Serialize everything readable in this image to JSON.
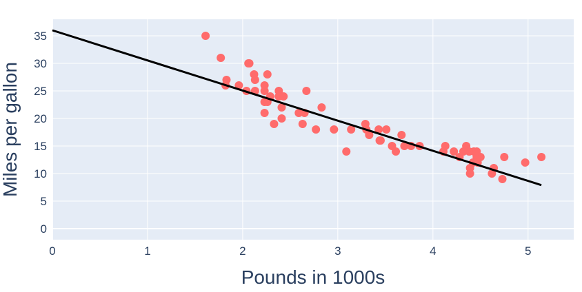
{
  "chart_data": {
    "type": "scatter",
    "xlabel": "Pounds in 1000s",
    "ylabel": "Miles per gallon",
    "xlim": [
      0,
      5.48
    ],
    "ylim": [
      -2,
      38
    ],
    "xticks": [
      0,
      1,
      2,
      3,
      4,
      5
    ],
    "yticks": [
      0,
      5,
      10,
      15,
      20,
      25,
      30,
      35
    ],
    "grid": true,
    "colors": {
      "points": "#ff6b6b",
      "line": "#000000",
      "plot_bg": "#e5ecf6",
      "grid": "#ffffff"
    },
    "trendline": {
      "x": [
        0,
        5.14
      ],
      "y": [
        36,
        7.9
      ]
    },
    "points": [
      [
        1.61,
        35
      ],
      [
        1.77,
        31
      ],
      [
        1.83,
        27
      ],
      [
        1.82,
        26
      ],
      [
        1.96,
        26
      ],
      [
        2.06,
        30
      ],
      [
        2.07,
        30
      ],
      [
        2.12,
        28
      ],
      [
        2.13,
        27
      ],
      [
        2.26,
        28
      ],
      [
        2.04,
        25
      ],
      [
        2.13,
        25
      ],
      [
        2.23,
        26
      ],
      [
        2.23,
        25
      ],
      [
        2.23,
        23
      ],
      [
        2.26,
        23
      ],
      [
        2.23,
        21
      ],
      [
        2.29,
        24
      ],
      [
        2.38,
        25
      ],
      [
        2.38,
        24
      ],
      [
        2.43,
        24
      ],
      [
        2.41,
        22
      ],
      [
        2.33,
        19
      ],
      [
        2.41,
        20
      ],
      [
        2.67,
        25
      ],
      [
        2.59,
        21
      ],
      [
        2.65,
        21
      ],
      [
        2.63,
        19
      ],
      [
        2.77,
        18
      ],
      [
        2.83,
        22
      ],
      [
        2.96,
        18
      ],
      [
        3.09,
        14
      ],
      [
        3.14,
        18
      ],
      [
        3.29,
        19
      ],
      [
        3.3,
        18
      ],
      [
        3.33,
        17
      ],
      [
        3.43,
        18
      ],
      [
        3.45,
        16
      ],
      [
        3.51,
        18
      ],
      [
        3.44,
        16
      ],
      [
        3.57,
        15
      ],
      [
        3.61,
        14
      ],
      [
        3.67,
        17
      ],
      [
        3.7,
        15
      ],
      [
        3.77,
        15
      ],
      [
        3.86,
        15
      ],
      [
        4.11,
        14
      ],
      [
        4.13,
        15
      ],
      [
        4.22,
        14
      ],
      [
        4.28,
        13
      ],
      [
        4.35,
        15
      ],
      [
        4.32,
        14
      ],
      [
        4.38,
        14
      ],
      [
        4.39,
        11
      ],
      [
        4.39,
        10
      ],
      [
        4.43,
        14
      ],
      [
        4.46,
        13
      ],
      [
        4.5,
        13
      ],
      [
        4.42,
        12
      ],
      [
        4.47,
        12
      ],
      [
        4.46,
        14
      ],
      [
        4.62,
        10
      ],
      [
        4.64,
        11
      ],
      [
        4.73,
        9
      ],
      [
        4.75,
        13
      ],
      [
        4.97,
        12
      ],
      [
        5.14,
        13
      ]
    ]
  }
}
